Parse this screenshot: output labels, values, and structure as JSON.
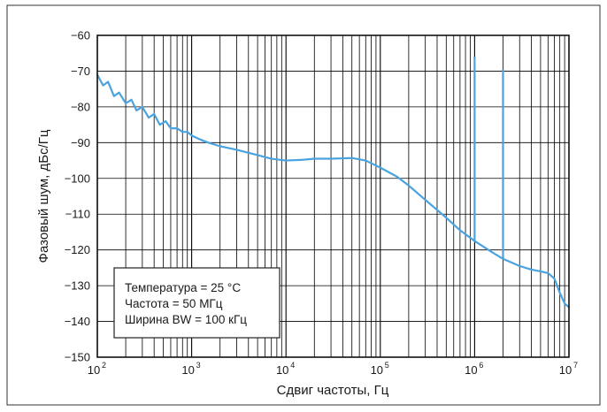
{
  "chart_data": {
    "type": "line",
    "xlabel": "Сдвиг частоты, Гц",
    "ylabel": "Фазовый шум, дБс/Гц",
    "x_scale": "log",
    "xlim": [
      100,
      10000000
    ],
    "ylim": [
      -150,
      -60
    ],
    "x_ticks": [
      {
        "base": "10",
        "exp": "2",
        "value": 100
      },
      {
        "base": "10",
        "exp": "3",
        "value": 1000
      },
      {
        "base": "10",
        "exp": "4",
        "value": 10000
      },
      {
        "base": "10",
        "exp": "5",
        "value": 100000
      },
      {
        "base": "10",
        "exp": "6",
        "value": 1000000
      },
      {
        "base": "10",
        "exp": "7",
        "value": 10000000
      }
    ],
    "y_ticks": [
      "−60",
      "−70",
      "−80",
      "−90",
      "−100",
      "−110",
      "−120",
      "−130",
      "−140",
      "−150"
    ],
    "y_tick_values": [
      -60,
      -70,
      -80,
      -90,
      -100,
      -110,
      -120,
      -130,
      -140,
      -150
    ],
    "grid": true,
    "legend_placement": "bottom-left",
    "annotations": [
      "Температура = 25 °C",
      "Частота = 50 МГц",
      "Ширина BW = 100 кГц"
    ],
    "series": [
      {
        "color": "#4aa3df",
        "x": [
          100,
          115,
          130,
          150,
          170,
          200,
          230,
          260,
          300,
          350,
          400,
          460,
          530,
          600,
          700,
          800,
          900,
          1000,
          1200,
          1500,
          2000,
          3000,
          5000,
          7000,
          10000,
          15000,
          20000,
          30000,
          50000,
          70000,
          100000,
          150000,
          200000,
          300000,
          500000,
          700000,
          1000000,
          1500000,
          2000000,
          3000000,
          4000000,
          5000000,
          6000000,
          7000000,
          8000000,
          9000000,
          10000000
        ],
        "y": [
          -71,
          -74,
          -73,
          -77,
          -76,
          -79,
          -78,
          -81,
          -80,
          -83,
          -82,
          -85,
          -84,
          -86,
          -86,
          -87,
          -87,
          -88,
          -89,
          -90,
          -91,
          -92,
          -93.5,
          -94.5,
          -95,
          -94.8,
          -94.5,
          -94.5,
          -94.3,
          -95,
          -97,
          -99.5,
          -102,
          -106,
          -111,
          -114.5,
          -117.5,
          -120.5,
          -122.5,
          -124.5,
          -125.5,
          -126,
          -126.5,
          -128,
          -132,
          -135,
          -136
        ],
        "spurs": [
          {
            "x": 1000000,
            "base": -117.5,
            "peak": -66
          },
          {
            "x": 2000000,
            "base": -122.5,
            "peak": -69.5
          }
        ]
      }
    ]
  }
}
